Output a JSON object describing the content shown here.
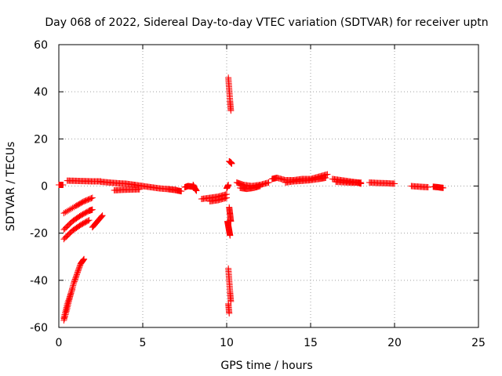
{
  "chart_data": {
    "type": "scatter",
    "title": "Day 068 of 2022, Sidereal Day-to-day VTEC variation (SDTVAR) for receiver uptn",
    "xlabel": "GPS time / hours",
    "ylabel": "SDTVAR / TECUs",
    "xlim": [
      0,
      25
    ],
    "ylim": [
      -60,
      60
    ],
    "x_ticks": [
      "0",
      "5",
      "10",
      "15",
      "20",
      "25"
    ],
    "y_ticks": [
      "60",
      "40",
      "20",
      "0",
      "-20",
      "-40",
      "-60"
    ],
    "marker": "+",
    "color": "#ff0000",
    "grid": true,
    "segments": [
      {
        "x": [
          0.0,
          0.25
        ],
        "y": [
          0.5,
          0.5
        ]
      },
      {
        "x": [
          0.5,
          1.0,
          1.5,
          2.0,
          2.5
        ],
        "y": [
          2.3,
          2.2,
          2.1,
          2.0,
          2.0
        ]
      },
      {
        "x": [
          2.5,
          3.0,
          3.5,
          4.0,
          4.5
        ],
        "y": [
          1.8,
          1.5,
          1.2,
          1.0,
          0.5
        ]
      },
      {
        "x": [
          3.3,
          3.8,
          4.3,
          4.8
        ],
        "y": [
          -1.8,
          -1.6,
          -1.5,
          -1.4
        ]
      },
      {
        "x": [
          4.5,
          5.0,
          5.5,
          6.0,
          6.5,
          7.0
        ],
        "y": [
          0.5,
          0.0,
          -0.5,
          -1.0,
          -1.3,
          -1.6
        ]
      },
      {
        "x": [
          6.5,
          7.0,
          7.3
        ],
        "y": [
          -1.3,
          -1.8,
          -2.2
        ]
      },
      {
        "x": [
          7.5,
          7.7,
          8.0
        ],
        "y": [
          -0.5,
          0.0,
          -0.3
        ]
      },
      {
        "x": [
          8.0,
          8.1,
          8.2
        ],
        "y": [
          0.5,
          -1.0,
          -2.0
        ]
      },
      {
        "x": [
          8.5,
          9.0,
          9.5,
          10.0
        ],
        "y": [
          -5.5,
          -5.0,
          -4.5,
          -3.5
        ]
      },
      {
        "x": [
          9.0,
          9.5,
          10.0
        ],
        "y": [
          -6.5,
          -6.0,
          -5.0
        ]
      },
      {
        "x": [
          10.0,
          10.1
        ],
        "y": [
          -1.0,
          0.5
        ]
      },
      {
        "x": [
          10.15,
          10.25,
          10.3
        ],
        "y": [
          10.5,
          10.0,
          9.5
        ]
      },
      {
        "x": [
          10.1,
          10.15,
          10.2,
          10.25
        ],
        "y": [
          46,
          41,
          36,
          32
        ]
      },
      {
        "x": [
          10.15,
          10.2,
          10.25
        ],
        "y": [
          -9,
          -12,
          -15
        ]
      },
      {
        "x": [
          10.05,
          10.1,
          10.15,
          10.2
        ],
        "y": [
          -15,
          -17,
          -19,
          -21
        ]
      },
      {
        "x": [
          10.1,
          10.15,
          10.2,
          10.25
        ],
        "y": [
          -35,
          -40,
          -45,
          -49
        ]
      },
      {
        "x": [
          10.1,
          10.15
        ],
        "y": [
          -50,
          -54
        ]
      },
      {
        "x": [
          10.6,
          11.0,
          11.5,
          12.0,
          12.5
        ],
        "y": [
          1.5,
          0.5,
          0.0,
          0.5,
          1.5
        ]
      },
      {
        "x": [
          10.8,
          11.2,
          11.6,
          12.0
        ],
        "y": [
          -0.8,
          -1.2,
          -0.8,
          0.0
        ]
      },
      {
        "x": [
          12.7,
          13.0,
          13.5,
          14.0,
          14.5,
          15.0,
          15.5,
          16.0
        ],
        "y": [
          3.0,
          3.5,
          2.5,
          2.5,
          3.0,
          3.0,
          4.0,
          5.0
        ]
      },
      {
        "x": [
          13.5,
          14.0,
          14.5,
          15.0,
          15.5,
          15.9
        ],
        "y": [
          1.5,
          2.0,
          2.2,
          2.5,
          3.0,
          3.5
        ]
      },
      {
        "x": [
          16.3,
          16.8,
          17.3,
          17.8,
          18.0
        ],
        "y": [
          3.0,
          2.5,
          2.0,
          1.5,
          1.0
        ]
      },
      {
        "x": [
          16.5,
          17.0,
          17.5,
          18.0
        ],
        "y": [
          1.8,
          1.6,
          1.4,
          1.5
        ]
      },
      {
        "x": [
          18.5,
          19.0,
          19.5,
          20.0
        ],
        "y": [
          1.5,
          1.3,
          1.2,
          1.0
        ]
      },
      {
        "x": [
          21.0,
          21.5,
          22.0
        ],
        "y": [
          0.0,
          -0.3,
          -0.5
        ]
      },
      {
        "x": [
          22.3,
          22.6,
          22.9
        ],
        "y": [
          -0.3,
          -0.5,
          -0.8
        ]
      },
      {
        "x": [
          0.3,
          1.0,
          1.5,
          2.0
        ],
        "y": [
          -11.5,
          -8.5,
          -6.5,
          -5.0
        ]
      },
      {
        "x": [
          0.3,
          0.8,
          1.3,
          1.8,
          2.0
        ],
        "y": [
          -18.5,
          -15.0,
          -12.5,
          -10.5,
          -10.0
        ]
      },
      {
        "x": [
          0.3,
          0.8,
          1.3,
          1.8
        ],
        "y": [
          -22.5,
          -19.0,
          -16.5,
          -14.5
        ]
      },
      {
        "x": [
          2.0,
          2.3,
          2.6
        ],
        "y": [
          -17.5,
          -15.0,
          -12.5
        ]
      },
      {
        "x": [
          0.3,
          0.5,
          0.7,
          0.9,
          1.1,
          1.3,
          1.5
        ],
        "y": [
          -57,
          -52,
          -46,
          -41,
          -37,
          -33,
          -31
        ]
      },
      {
        "x": [
          0.3,
          0.5,
          0.8
        ],
        "y": [
          -56,
          -50,
          -44
        ]
      }
    ]
  }
}
